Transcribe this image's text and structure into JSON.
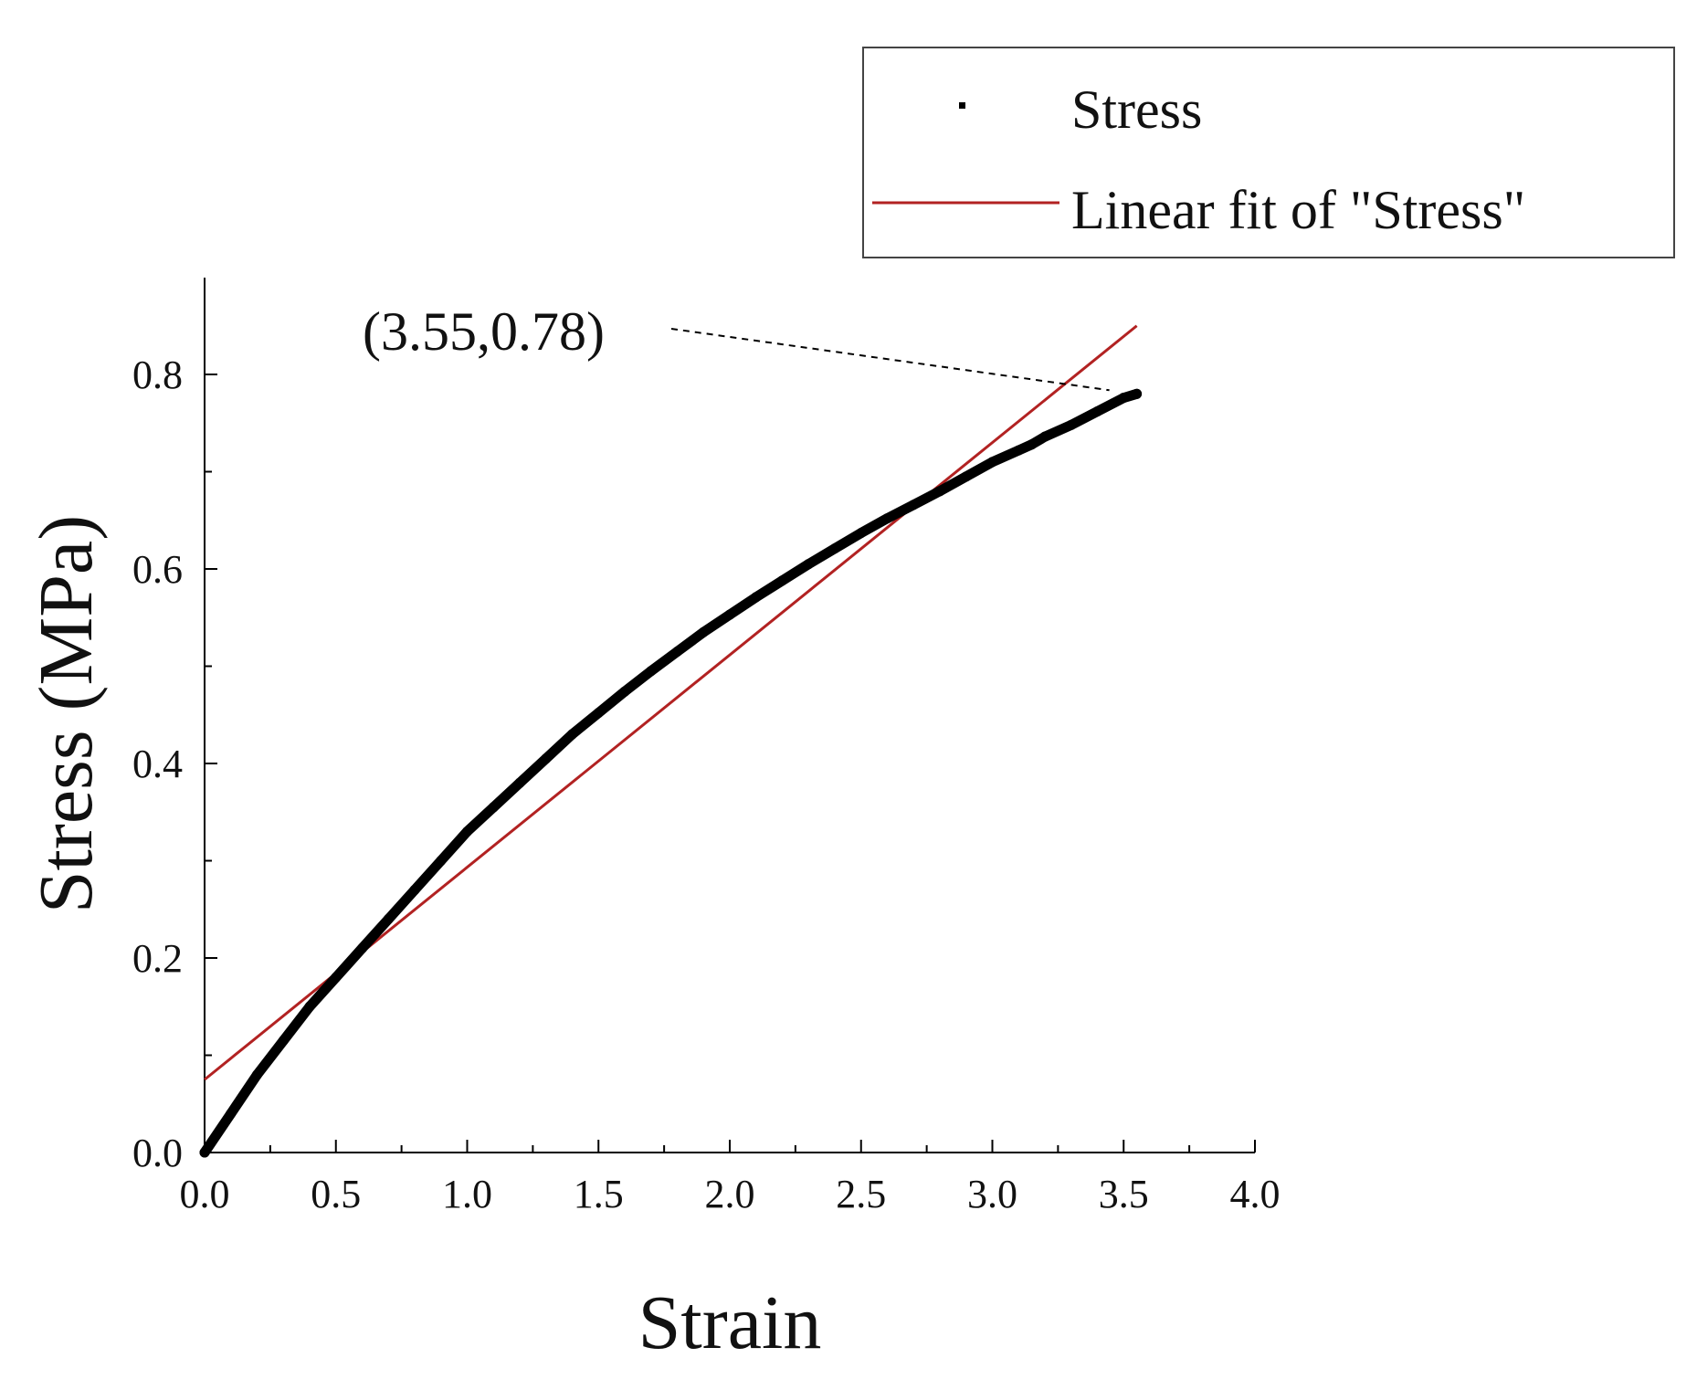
{
  "chart_data": {
    "type": "line",
    "title": "",
    "xlabel": "Strain",
    "ylabel": "Stress (MPa)",
    "xlim": [
      0.0,
      4.0
    ],
    "ylim": [
      0.0,
      0.9
    ],
    "x_ticks": [
      0.0,
      0.5,
      1.0,
      1.5,
      2.0,
      2.5,
      3.0,
      3.5,
      4.0
    ],
    "x_tick_labels": [
      "0.0",
      "0.5",
      "1.0",
      "1.5",
      "2.0",
      "2.5",
      "3.0",
      "3.5",
      "4.0"
    ],
    "y_ticks": [
      0.0,
      0.2,
      0.4,
      0.6,
      0.8
    ],
    "y_tick_labels": [
      "0.0",
      "0.2",
      "0.4",
      "0.6",
      "0.8"
    ],
    "x_minor_step": 0.25,
    "y_minor_step": 0.1,
    "grid": false,
    "legend_position": "top-right",
    "series": [
      {
        "name": "Stress",
        "kind": "scatter",
        "color": "#000000",
        "x": [
          0.0,
          0.1,
          0.2,
          0.3,
          0.4,
          0.5,
          0.6,
          0.7,
          0.8,
          0.9,
          1.0,
          1.1,
          1.2,
          1.3,
          1.4,
          1.5,
          1.6,
          1.7,
          1.8,
          1.9,
          2.0,
          2.1,
          2.2,
          2.3,
          2.4,
          2.5,
          2.6,
          2.7,
          2.8,
          2.9,
          3.0,
          3.1,
          3.15,
          3.2,
          3.3,
          3.4,
          3.5,
          3.55
        ],
        "y": [
          0.0,
          0.04,
          0.08,
          0.115,
          0.15,
          0.18,
          0.21,
          0.24,
          0.27,
          0.3,
          0.33,
          0.355,
          0.38,
          0.405,
          0.43,
          0.452,
          0.474,
          0.495,
          0.515,
          0.535,
          0.553,
          0.571,
          0.588,
          0.605,
          0.621,
          0.637,
          0.652,
          0.666,
          0.68,
          0.695,
          0.71,
          0.722,
          0.728,
          0.736,
          0.748,
          0.762,
          0.776,
          0.78
        ]
      },
      {
        "name": "Linear fit of \"Stress\"",
        "kind": "line",
        "color": "#b22222",
        "x": [
          0.0,
          3.55
        ],
        "y": [
          0.075,
          0.85
        ]
      }
    ],
    "annotations": [
      {
        "text": "(3.55,0.78)",
        "x": 3.55,
        "y": 0.78,
        "style": "dashed-leader"
      }
    ]
  }
}
